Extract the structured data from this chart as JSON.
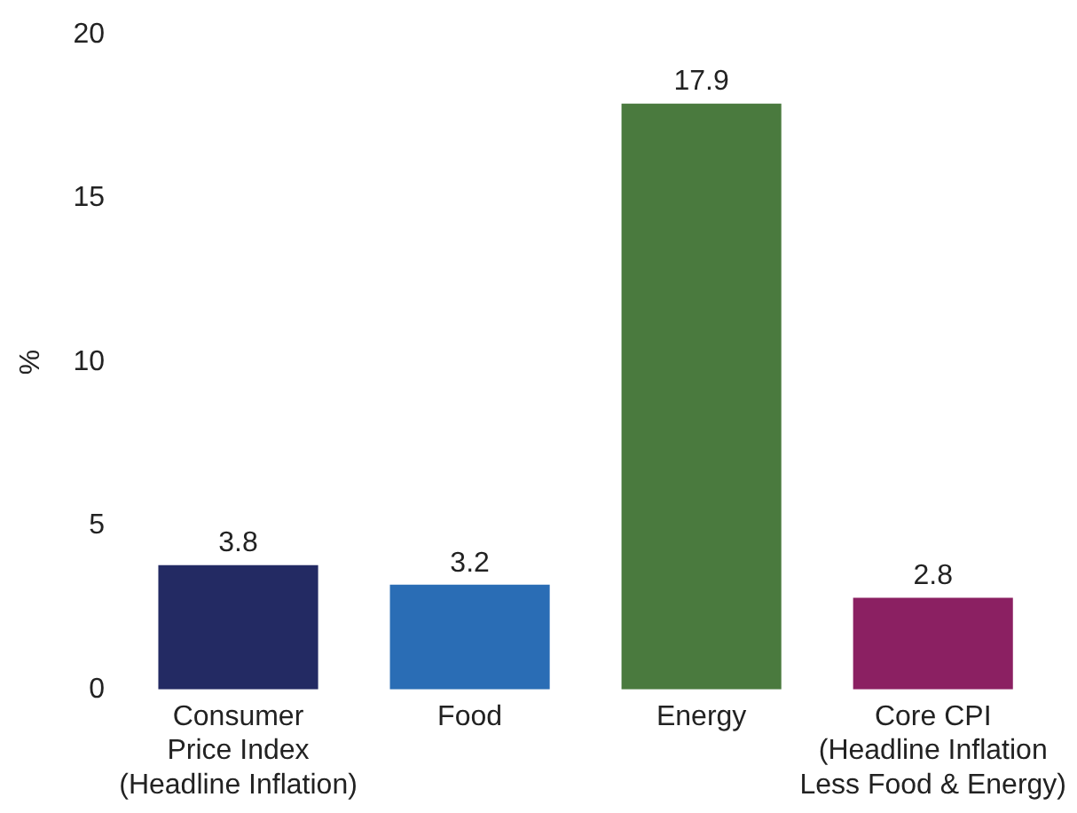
{
  "chart_data": {
    "type": "bar",
    "ylabel": "%",
    "categories": [
      "Consumer\nPrice Index\n(Headline Inflation)",
      "Food",
      "Energy",
      "Core CPI\n(Headline Inflation\nLess Food & Energy)"
    ],
    "values": [
      3.8,
      3.2,
      17.9,
      2.8
    ],
    "colors": [
      "#232a63",
      "#2a6db5",
      "#4a7a3e",
      "#8b2062"
    ],
    "ylim": [
      0,
      20
    ],
    "yticks": [
      0,
      5,
      10,
      15,
      20
    ],
    "grid": false,
    "legend": false,
    "data_labels": true
  }
}
